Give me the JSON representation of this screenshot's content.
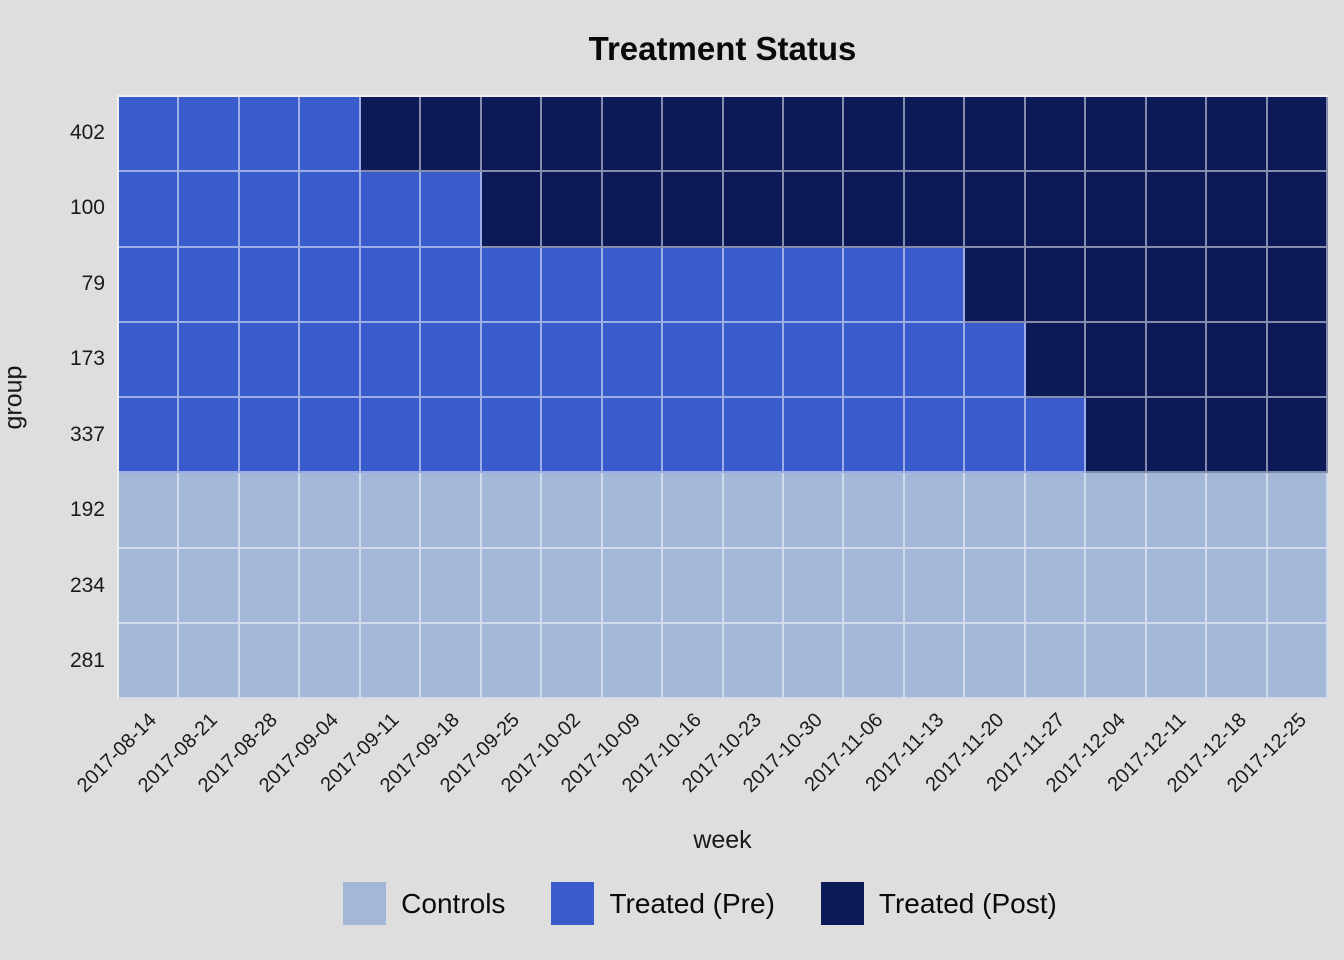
{
  "chart_data": {
    "type": "heatmap",
    "title": "Treatment Status",
    "xlabel": "week",
    "ylabel": "group",
    "x": [
      "2017-08-14",
      "2017-08-21",
      "2017-08-28",
      "2017-09-04",
      "2017-09-11",
      "2017-09-18",
      "2017-09-25",
      "2017-10-02",
      "2017-10-09",
      "2017-10-16",
      "2017-10-23",
      "2017-10-30",
      "2017-11-06",
      "2017-11-13",
      "2017-11-20",
      "2017-11-27",
      "2017-12-04",
      "2017-12-11",
      "2017-12-18",
      "2017-12-25"
    ],
    "groups": [
      "402",
      "100",
      "79",
      "173",
      "337",
      "192",
      "234",
      "281"
    ],
    "status_colors": {
      "control": "#a3b7d9",
      "pre": "#3a5bcb",
      "post": "#0d1a58"
    },
    "rows": [
      {
        "group": "402",
        "post_start": "2017-09-11",
        "statuses": [
          "pre",
          "pre",
          "pre",
          "pre",
          "post",
          "post",
          "post",
          "post",
          "post",
          "post",
          "post",
          "post",
          "post",
          "post",
          "post",
          "post",
          "post",
          "post",
          "post",
          "post"
        ]
      },
      {
        "group": "100",
        "post_start": "2017-09-25",
        "statuses": [
          "pre",
          "pre",
          "pre",
          "pre",
          "pre",
          "pre",
          "post",
          "post",
          "post",
          "post",
          "post",
          "post",
          "post",
          "post",
          "post",
          "post",
          "post",
          "post",
          "post",
          "post"
        ]
      },
      {
        "group": "79",
        "post_start": "2017-11-20",
        "statuses": [
          "pre",
          "pre",
          "pre",
          "pre",
          "pre",
          "pre",
          "pre",
          "pre",
          "pre",
          "pre",
          "pre",
          "pre",
          "pre",
          "pre",
          "post",
          "post",
          "post",
          "post",
          "post",
          "post"
        ]
      },
      {
        "group": "173",
        "post_start": "2017-11-27",
        "statuses": [
          "pre",
          "pre",
          "pre",
          "pre",
          "pre",
          "pre",
          "pre",
          "pre",
          "pre",
          "pre",
          "pre",
          "pre",
          "pre",
          "pre",
          "pre",
          "post",
          "post",
          "post",
          "post",
          "post"
        ]
      },
      {
        "group": "337",
        "post_start": "2017-12-04",
        "statuses": [
          "pre",
          "pre",
          "pre",
          "pre",
          "pre",
          "pre",
          "pre",
          "pre",
          "pre",
          "pre",
          "pre",
          "pre",
          "pre",
          "pre",
          "pre",
          "pre",
          "post",
          "post",
          "post",
          "post"
        ]
      },
      {
        "group": "192",
        "post_start": null,
        "statuses": [
          "control",
          "control",
          "control",
          "control",
          "control",
          "control",
          "control",
          "control",
          "control",
          "control",
          "control",
          "control",
          "control",
          "control",
          "control",
          "control",
          "control",
          "control",
          "control",
          "control"
        ]
      },
      {
        "group": "234",
        "post_start": null,
        "statuses": [
          "control",
          "control",
          "control",
          "control",
          "control",
          "control",
          "control",
          "control",
          "control",
          "control",
          "control",
          "control",
          "control",
          "control",
          "control",
          "control",
          "control",
          "control",
          "control",
          "control"
        ]
      },
      {
        "group": "281",
        "post_start": null,
        "statuses": [
          "control",
          "control",
          "control",
          "control",
          "control",
          "control",
          "control",
          "control",
          "control",
          "control",
          "control",
          "control",
          "control",
          "control",
          "control",
          "control",
          "control",
          "control",
          "control",
          "control"
        ]
      }
    ],
    "legend_position": "bottom",
    "grid_line_color": "rgba(255,255,255,0.5)",
    "background": "#dedede"
  },
  "legend": {
    "items": [
      {
        "label": "Controls",
        "status": "control",
        "color": "#a3b7d9"
      },
      {
        "label": "Treated (Pre)",
        "status": "pre",
        "color": "#3a5bcb"
      },
      {
        "label": "Treated (Post)",
        "status": "post",
        "color": "#0d1a58"
      }
    ]
  }
}
